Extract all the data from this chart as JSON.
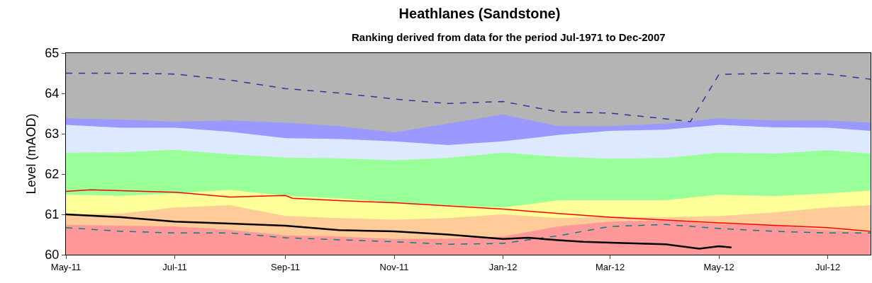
{
  "chart_data": {
    "type": "area",
    "title": "Heathlanes (Sandstone)",
    "subtitle": "Ranking derived from data for the period Jul-1971 to Dec-2007",
    "ylabel": "Level (mAOD)",
    "x": [
      "2011-05-01",
      "2011-06-01",
      "2011-07-01",
      "2011-08-01",
      "2011-09-01",
      "2011-10-01",
      "2011-11-01",
      "2011-12-01",
      "2012-01-01",
      "2012-02-01",
      "2012-03-01",
      "2012-04-01",
      "2012-05-01",
      "2012-06-01",
      "2012-07-01",
      "2012-07-25"
    ],
    "xlim": [
      "2011-05-01",
      "2012-07-25"
    ],
    "xticks": [
      {
        "value": "2011-05-01",
        "label": "May-11"
      },
      {
        "value": "2011-07-01",
        "label": "Jul-11"
      },
      {
        "value": "2011-09-01",
        "label": "Sep-11"
      },
      {
        "value": "2011-11-01",
        "label": "Nov-11"
      },
      {
        "value": "2012-01-01",
        "label": "Jan-12"
      },
      {
        "value": "2012-03-01",
        "label": "Mar-12"
      },
      {
        "value": "2012-05-01",
        "label": "May-12"
      },
      {
        "value": "2012-07-01",
        "label": "Jul-12"
      }
    ],
    "ylim": [
      60,
      65
    ],
    "yticks": [
      60,
      61,
      62,
      63,
      64,
      65
    ],
    "marker": "none",
    "series": [
      {
        "color": "#b4b4b4",
        "values": [
          65,
          65,
          65,
          65,
          65,
          65,
          65,
          65,
          65,
          65,
          65,
          65,
          65,
          65,
          65,
          65
        ]
      },
      {
        "color": "#9999ff",
        "values": [
          63.38,
          63.35,
          63.3,
          63.33,
          63.27,
          63.19,
          63.03,
          63.25,
          63.48,
          63.19,
          63.19,
          63.25,
          63.38,
          63.33,
          63.33,
          63.27
        ]
      },
      {
        "color": "#dde9ff",
        "values": [
          63.22,
          63.15,
          63.15,
          63.05,
          62.89,
          62.87,
          62.81,
          62.72,
          62.81,
          62.97,
          63.07,
          63.1,
          63.22,
          63.16,
          63.15,
          63.07
        ]
      },
      {
        "color": "#99ff99",
        "values": [
          62.53,
          62.54,
          62.6,
          62.49,
          62.41,
          62.39,
          62.34,
          62.4,
          62.53,
          62.43,
          62.38,
          62.4,
          62.53,
          62.51,
          62.59,
          62.51
        ]
      },
      {
        "color": "#ffff99",
        "values": [
          61.49,
          61.46,
          61.52,
          61.61,
          61.46,
          61.4,
          61.29,
          61.23,
          61.17,
          61.35,
          61.35,
          61.35,
          61.49,
          61.45,
          61.52,
          61.59
        ]
      },
      {
        "color": "#ffcc99",
        "values": [
          61.0,
          61.02,
          61.17,
          61.23,
          60.96,
          60.91,
          60.87,
          60.91,
          61.0,
          60.91,
          60.94,
          60.93,
          60.96,
          61.05,
          61.17,
          61.23
        ]
      },
      {
        "color": "#ff9999",
        "values": [
          60.74,
          60.72,
          60.7,
          60.62,
          60.48,
          60.45,
          60.39,
          60.4,
          60.45,
          60.7,
          60.82,
          60.85,
          60.76,
          60.72,
          60.61,
          60.55
        ]
      },
      {
        "type": "line",
        "color": "#333399",
        "line_style": "dashed",
        "x": [
          "2011-05-01",
          "2011-06-01",
          "2011-07-01",
          "2011-08-01",
          "2011-09-01",
          "2011-10-01",
          "2011-11-01",
          "2011-12-01",
          "2012-01-01",
          "2012-02-01",
          "2012-03-01",
          "2012-04-01",
          "2012-04-15",
          "2012-05-01",
          "2012-06-01",
          "2012-07-01",
          "2012-07-25"
        ],
        "values": [
          64.5,
          64.5,
          64.48,
          64.33,
          64.12,
          64.01,
          63.86,
          63.75,
          63.8,
          63.54,
          63.51,
          63.37,
          63.3,
          64.47,
          64.5,
          64.48,
          64.35
        ]
      },
      {
        "type": "line",
        "color": "#008080",
        "line_style": "dashed",
        "x": [
          "2011-05-01",
          "2011-06-01",
          "2011-07-01",
          "2011-08-01",
          "2011-09-01",
          "2011-10-01",
          "2011-11-01",
          "2011-12-01",
          "2012-01-01",
          "2012-02-01",
          "2012-03-01",
          "2012-04-01",
          "2012-05-01",
          "2012-06-01",
          "2012-07-01",
          "2012-07-25"
        ],
        "values": [
          60.67,
          60.58,
          60.54,
          60.54,
          60.42,
          60.37,
          60.32,
          60.26,
          60.28,
          60.47,
          60.7,
          60.75,
          60.65,
          60.58,
          60.54,
          60.54
        ]
      },
      {
        "type": "line",
        "color": "#ff0000",
        "line_style": "solid",
        "x": [
          "2011-05-01",
          "2011-05-15",
          "2011-07-01",
          "2011-08-01",
          "2011-09-01",
          "2011-09-05",
          "2011-10-01",
          "2011-11-01",
          "2011-12-01",
          "2012-01-01",
          "2012-02-01",
          "2012-03-01",
          "2012-04-01",
          "2012-05-01",
          "2012-06-01",
          "2012-07-01",
          "2012-07-25"
        ],
        "values": [
          61.57,
          61.61,
          61.55,
          61.43,
          61.47,
          61.4,
          61.34,
          61.29,
          61.21,
          61.13,
          61.02,
          60.93,
          60.86,
          60.79,
          60.73,
          60.67,
          60.58
        ]
      },
      {
        "type": "line",
        "color": "#000000",
        "line_style": "solid",
        "x": [
          "2011-05-01",
          "2011-06-01",
          "2011-07-01",
          "2011-08-01",
          "2011-09-01",
          "2011-10-01",
          "2011-11-01",
          "2011-12-01",
          "2012-01-01",
          "2012-01-15",
          "2012-02-01",
          "2012-02-15",
          "2012-03-01",
          "2012-04-01",
          "2012-04-20",
          "2012-05-01",
          "2012-05-08"
        ],
        "values": [
          61.0,
          60.93,
          60.82,
          60.77,
          60.72,
          60.61,
          60.58,
          60.5,
          60.39,
          60.42,
          60.36,
          60.32,
          60.3,
          60.26,
          60.15,
          60.21,
          60.18
        ]
      }
    ]
  }
}
